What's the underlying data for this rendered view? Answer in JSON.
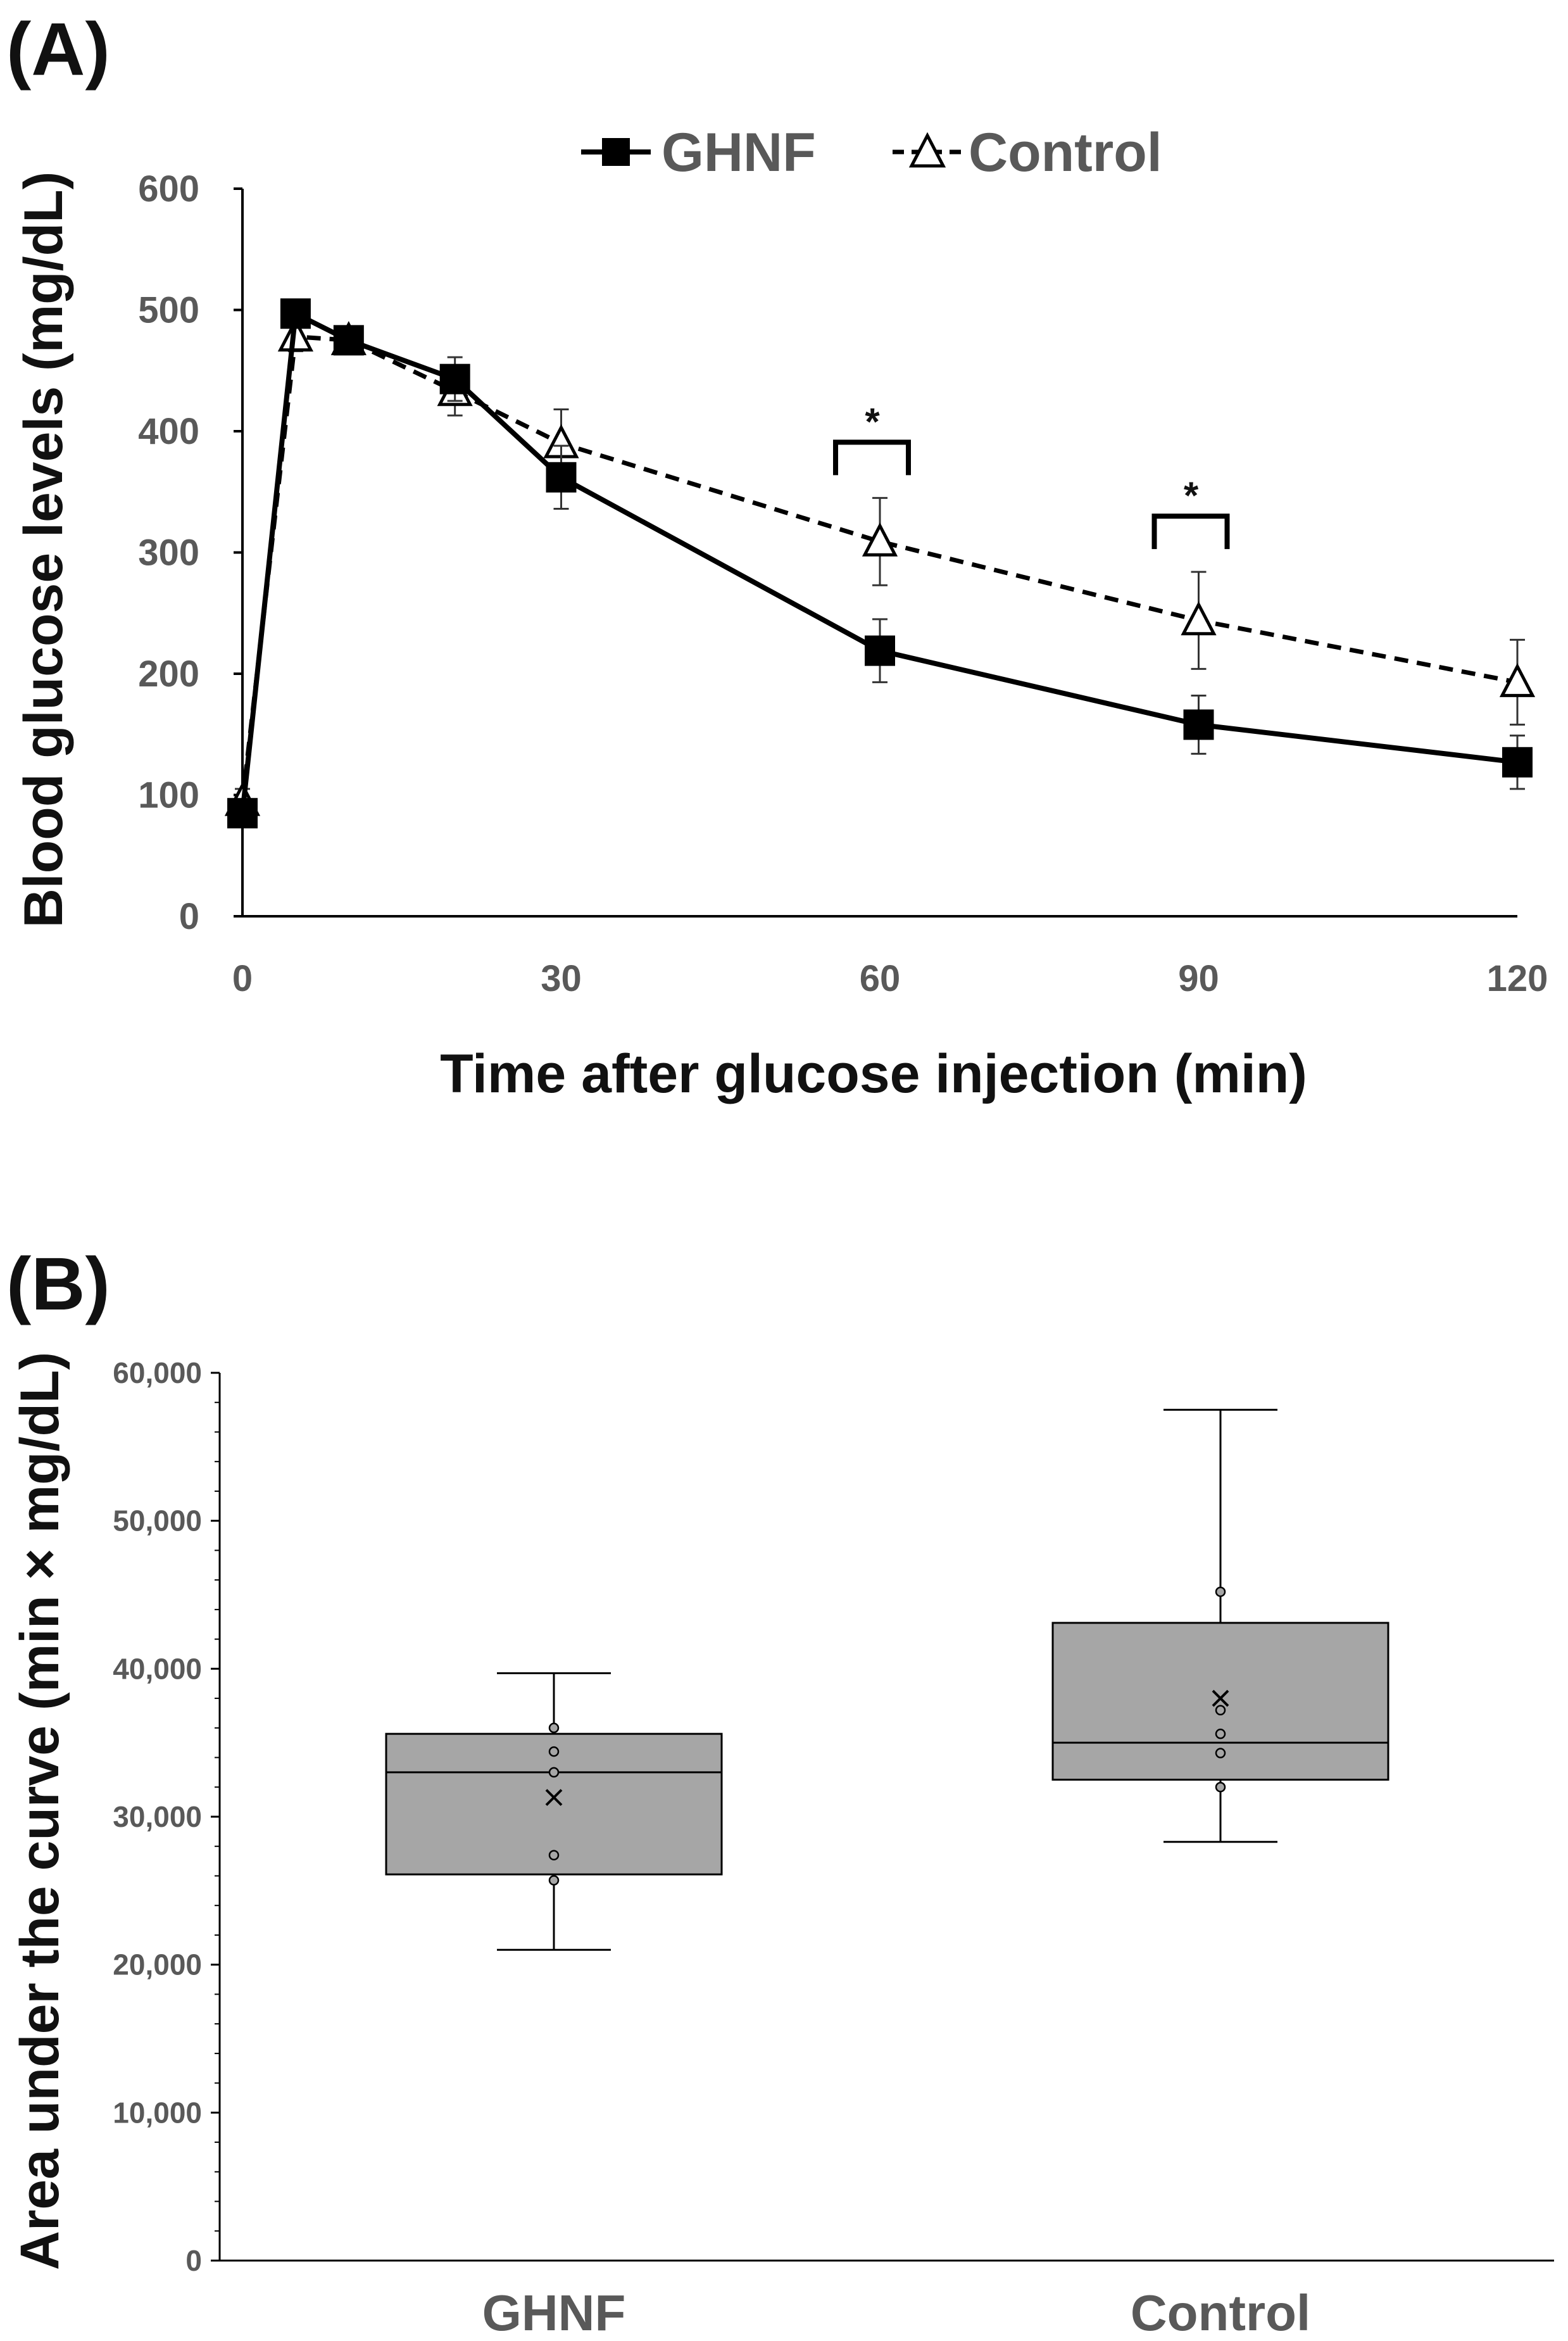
{
  "chart_data": [
    {
      "panel": "(A)",
      "type": "line",
      "xlabel": "Time after glucose injection (min)",
      "ylabel": "Blood glucose levels (mg/dL)",
      "xlim": [
        0,
        120
      ],
      "ylim": [
        0,
        600
      ],
      "xticks": [
        0,
        30,
        60,
        90,
        120
      ],
      "yticks": [
        0,
        100,
        200,
        300,
        400,
        500,
        600
      ],
      "legend_position": "top-center",
      "series": [
        {
          "name": "GHNF",
          "marker": "filled-square",
          "line": "solid",
          "color": "#000000",
          "x": [
            0,
            5,
            10,
            20,
            30,
            60,
            90,
            120
          ],
          "y": [
            85,
            497,
            475,
            443,
            362,
            219,
            158,
            127
          ],
          "error": [
            10,
            8,
            8,
            18,
            26,
            26,
            24,
            22
          ]
        },
        {
          "name": "Control",
          "marker": "open-triangle",
          "line": "dashed",
          "color": "#000000",
          "x": [
            0,
            5,
            10,
            20,
            30,
            60,
            90,
            120
          ],
          "y": [
            95,
            478,
            475,
            433,
            390,
            309,
            244,
            193
          ],
          "error": [
            10,
            12,
            10,
            20,
            28,
            36,
            40,
            35
          ]
        }
      ],
      "annotations": [
        {
          "x": 60,
          "text": "*"
        },
        {
          "x": 90,
          "text": "*"
        }
      ]
    },
    {
      "panel": "(B)",
      "type": "box",
      "categories": [
        "GHNF",
        "Control"
      ],
      "ylabel": "Area under the curve (min × mg/dL)",
      "ylim": [
        0,
        60000
      ],
      "yticks": [
        "0",
        "10,000",
        "20,000",
        "30,000",
        "40,000",
        "50,000",
        "60,000"
      ],
      "ytick_values": [
        0,
        10000,
        20000,
        30000,
        40000,
        50000,
        60000
      ],
      "boxes": [
        {
          "name": "GHNF",
          "whisker_low": 21000,
          "q1": 26100,
          "median": 33000,
          "q3": 35600,
          "whisker_high": 39700,
          "mean": 31300,
          "points": [
            25700,
            27400,
            33000,
            34400,
            36000
          ]
        },
        {
          "name": "Control",
          "whisker_low": 28300,
          "q1": 32500,
          "median": 35000,
          "q3": 43100,
          "whisker_high": 57500,
          "mean": 38000,
          "points": [
            32000,
            34300,
            35600,
            37200,
            45200
          ]
        }
      ],
      "box_fill": "#a6a6a6"
    }
  ]
}
